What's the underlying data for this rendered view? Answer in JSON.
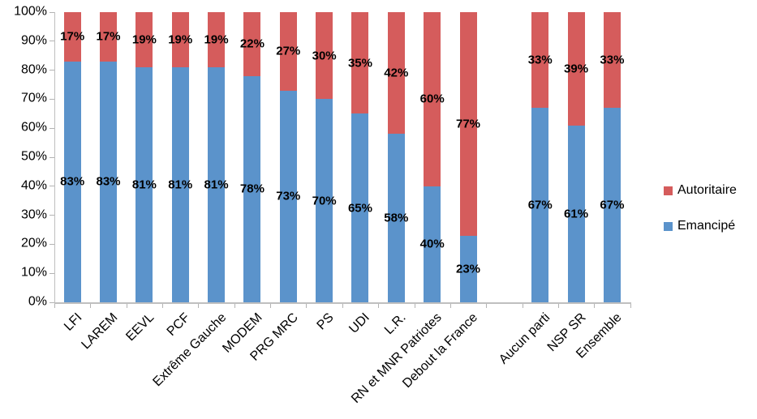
{
  "chart_data": {
    "type": "bar",
    "stacked": true,
    "stacked_to_100": true,
    "title": "",
    "xlabel": "",
    "ylabel": "",
    "categories": [
      "LFI",
      "LAREM",
      "EEVL",
      "PCF",
      "Extrême Gauche",
      "MODEM",
      "PRG MRC",
      "PS",
      "UDI",
      "L.R.",
      "RN et MNR Patriotes",
      "Debout la France",
      "Aucun parti",
      "NSP SR",
      "Ensemble"
    ],
    "series": [
      {
        "name": "Emancipé",
        "color": "#5b93cb",
        "values": [
          83,
          83,
          81,
          81,
          81,
          78,
          73,
          70,
          65,
          58,
          40,
          23,
          67,
          61,
          67
        ]
      },
      {
        "name": "Autoritaire",
        "color": "#d55c5c",
        "values": [
          17,
          17,
          19,
          19,
          19,
          22,
          27,
          30,
          35,
          42,
          60,
          77,
          33,
          39,
          33
        ]
      }
    ],
    "data_label_format": "{v}%",
    "separator_after_category": "Debout la France",
    "y_ticks": [
      "0%",
      "10%",
      "20%",
      "30%",
      "40%",
      "50%",
      "60%",
      "70%",
      "80%",
      "90%",
      "100%"
    ],
    "ylim": [
      0,
      100
    ],
    "grid": false,
    "legend_position": "right",
    "x_label_rotation_deg": -45
  },
  "legend": {
    "items": [
      {
        "label": "Autoritaire",
        "color": "#d55c5c"
      },
      {
        "label": "Emancipé",
        "color": "#5b93cb"
      }
    ]
  },
  "axis": {
    "line_color": "#bfbfbf",
    "text_color": "#000000"
  }
}
